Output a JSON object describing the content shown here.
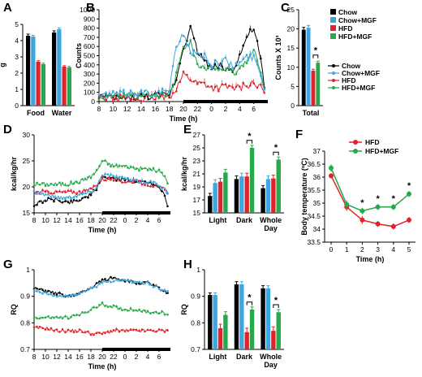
{
  "colors": {
    "chow": "#000000",
    "chow_mgf": "#3da6e0",
    "hfd": "#e0232b",
    "hfd_mgf": "#27a84a"
  },
  "legend": {
    "chow": "Chow",
    "chow_mgf": "Chow+MGF",
    "hfd": "HFD",
    "hfd_mgf": "HFD+MGF"
  },
  "chart_data": [
    {
      "panel": "A",
      "type": "bar",
      "ylabel": "g",
      "ylim": [
        0,
        5
      ],
      "yticks": [
        0,
        1,
        2,
        3,
        4,
        5
      ],
      "categories": [
        "Food",
        "Water"
      ],
      "series": [
        {
          "name": "Chow",
          "values": [
            4.3,
            4.5
          ],
          "err": [
            0.1,
            0.1
          ]
        },
        {
          "name": "Chow+MGF",
          "values": [
            4.25,
            4.7
          ],
          "err": [
            0.08,
            0.08
          ]
        },
        {
          "name": "HFD",
          "values": [
            2.7,
            2.4
          ],
          "err": [
            0.06,
            0.06
          ]
        },
        {
          "name": "HFD+MGF",
          "values": [
            2.55,
            2.35
          ],
          "err": [
            0.06,
            0.06
          ]
        }
      ]
    },
    {
      "panel": "B",
      "type": "line",
      "ylabel": "Counts",
      "xlabel": "Time (h)",
      "ylim": [
        0,
        1000
      ],
      "yticks": [
        0,
        100,
        200,
        300,
        400,
        500,
        600,
        700,
        800,
        900,
        1000
      ],
      "xticks": [
        "8",
        "10",
        "12",
        "14",
        "16",
        "18",
        "20",
        "22",
        "0",
        "2",
        "4",
        "6"
      ],
      "x_start_hour": 8,
      "x_end_hour": 31.5,
      "dark_start_hour": 20,
      "dark_end_hour": 32,
      "series": [
        {
          "name": "Chow",
          "x_hour": [
            8,
            10,
            12,
            14,
            16,
            18,
            19,
            20,
            21,
            22,
            23,
            24,
            25,
            26,
            27,
            28,
            29,
            30,
            31,
            31.5
          ],
          "values": [
            60,
            40,
            40,
            50,
            60,
            70,
            250,
            600,
            800,
            550,
            450,
            350,
            400,
            350,
            350,
            500,
            700,
            800,
            450,
            150
          ]
        },
        {
          "name": "Chow+MGF",
          "x_hour": [
            8,
            10,
            12,
            14,
            16,
            18,
            19,
            20,
            21,
            22,
            23,
            24,
            25,
            26,
            27,
            28,
            29,
            30,
            31,
            31.5
          ],
          "values": [
            60,
            80,
            90,
            100,
            90,
            120,
            600,
            750,
            550,
            500,
            500,
            400,
            420,
            450,
            380,
            420,
            480,
            480,
            300,
            150
          ]
        },
        {
          "name": "HFD",
          "x_hour": [
            8,
            10,
            12,
            14,
            16,
            18,
            19,
            20,
            21,
            22,
            23,
            24,
            25,
            26,
            27,
            28,
            29,
            30,
            31,
            31.5
          ],
          "values": [
            40,
            40,
            30,
            30,
            40,
            50,
            150,
            300,
            250,
            200,
            200,
            150,
            150,
            160,
            150,
            150,
            180,
            200,
            150,
            100
          ]
        },
        {
          "name": "HFD+MGF",
          "x_hour": [
            8,
            10,
            12,
            14,
            16,
            18,
            19,
            20,
            21,
            22,
            23,
            24,
            25,
            26,
            27,
            28,
            29,
            30,
            31,
            31.5
          ],
          "values": [
            50,
            60,
            60,
            60,
            60,
            80,
            300,
            600,
            650,
            400,
            350,
            350,
            380,
            350,
            300,
            350,
            450,
            550,
            350,
            150
          ]
        }
      ]
    },
    {
      "panel": "C",
      "type": "bar",
      "ylabel": "Counts X 10³",
      "ylim": [
        0,
        25
      ],
      "yticks": [
        0,
        5,
        10,
        15,
        20,
        25
      ],
      "categories": [
        "Total"
      ],
      "series": [
        {
          "name": "Chow",
          "values": [
            19.8
          ],
          "err": [
            0.6
          ]
        },
        {
          "name": "Chow+MGF",
          "values": [
            20.3
          ],
          "err": [
            0.6
          ]
        },
        {
          "name": "HFD",
          "values": [
            9.1
          ],
          "err": [
            0.4
          ]
        },
        {
          "name": "HFD+MGF",
          "values": [
            11.2
          ],
          "err": [
            0.4
          ]
        }
      ],
      "annotations": [
        "*"
      ]
    },
    {
      "panel": "D",
      "type": "line",
      "ylabel": "kcal/kg/hr",
      "xlabel": "Time (h)",
      "ylim": [
        15,
        30
      ],
      "yticks": [
        15,
        20,
        25,
        30
      ],
      "xticks": [
        "8",
        "10",
        "12",
        "14",
        "16",
        "18",
        "20",
        "22",
        "0",
        "2",
        "4",
        "6"
      ],
      "x_start_hour": 8,
      "x_end_hour": 31.5,
      "dark_start_hour": 20,
      "dark_end_hour": 32,
      "series": [
        {
          "name": "Chow",
          "x_hour": [
            8,
            10,
            12,
            14,
            16,
            18,
            19,
            20,
            22,
            24,
            26,
            28,
            30,
            31,
            31.5
          ],
          "values": [
            16.5,
            17.5,
            17.5,
            17,
            17.5,
            18.5,
            19.5,
            22,
            21.5,
            21.5,
            21,
            21,
            20,
            18.5,
            16.5
          ]
        },
        {
          "name": "Chow+MGF",
          "x_hour": [
            8,
            10,
            12,
            14,
            16,
            18,
            19,
            20,
            22,
            24,
            26,
            28,
            30,
            31,
            31.5
          ],
          "values": [
            19,
            18.5,
            18,
            18,
            18.5,
            19,
            20,
            22.5,
            22,
            21.5,
            21,
            21,
            20.5,
            19.5,
            18.5
          ]
        },
        {
          "name": "HFD",
          "x_hour": [
            8,
            10,
            12,
            14,
            16,
            18,
            19,
            20,
            22,
            24,
            26,
            28,
            30,
            31,
            31.5
          ],
          "values": [
            19,
            19,
            19,
            19,
            19,
            19.5,
            20.5,
            21.5,
            21.5,
            21,
            21,
            20.5,
            20,
            19.5,
            19
          ]
        },
        {
          "name": "HFD+MGF",
          "x_hour": [
            8,
            10,
            12,
            14,
            16,
            18,
            19,
            20,
            22,
            24,
            26,
            28,
            30,
            31,
            31.5
          ],
          "values": [
            20.5,
            20.5,
            20.5,
            20.5,
            21,
            22,
            23,
            25,
            24,
            24,
            23.5,
            23.5,
            23,
            22,
            21
          ]
        }
      ]
    },
    {
      "panel": "E",
      "type": "bar",
      "ylabel": "kcal/kg/hr",
      "ylim": [
        15,
        27
      ],
      "yticks": [
        15,
        17,
        19,
        21,
        23,
        25,
        27
      ],
      "categories": [
        "Light",
        "Dark",
        "Whole\nDay"
      ],
      "category_lines": [
        [
          "Light"
        ],
        [
          "Dark"
        ],
        [
          "Whole",
          "Day"
        ]
      ],
      "series": [
        {
          "name": "Chow",
          "values": [
            17.6,
            20.2,
            18.8
          ],
          "err": [
            0.4,
            0.5,
            0.4
          ]
        },
        {
          "name": "Chow+MGF",
          "values": [
            19.6,
            20.6,
            20.2
          ],
          "err": [
            0.5,
            0.5,
            0.5
          ]
        },
        {
          "name": "HFD",
          "values": [
            19.8,
            20.6,
            20.3
          ],
          "err": [
            0.5,
            0.5,
            0.5
          ]
        },
        {
          "name": "HFD+MGF",
          "values": [
            21.2,
            25.0,
            23.2
          ],
          "err": [
            0.5,
            0.4,
            0.4
          ]
        }
      ],
      "annotations": [
        "*",
        "*"
      ]
    },
    {
      "panel": "F",
      "type": "line",
      "ylabel": "Body temperature (ºC)",
      "xlabel": "Time (h)",
      "ylim": [
        33.5,
        37
      ],
      "yticks": [
        33.5,
        34,
        34.5,
        35,
        35.5,
        36,
        36.5,
        37
      ],
      "x": [
        0,
        1,
        2,
        3,
        4,
        5
      ],
      "series": [
        {
          "name": "HFD",
          "values": [
            36.05,
            34.85,
            34.35,
            34.2,
            34.1,
            34.35
          ],
          "err": [
            0.1,
            0.15,
            0.15,
            0.12,
            0.12,
            0.12
          ]
        },
        {
          "name": "HFD+MGF",
          "values": [
            36.35,
            34.95,
            34.7,
            34.85,
            34.85,
            35.35
          ],
          "err": [
            0.15,
            0.15,
            0.12,
            0.12,
            0.12,
            0.12
          ]
        }
      ],
      "annotations": [
        "*",
        "*",
        "*",
        "*"
      ]
    },
    {
      "panel": "G",
      "type": "line",
      "ylabel": "RQ",
      "xlabel": "Time (h)",
      "ylim": [
        0.7,
        1.0
      ],
      "yticks": [
        0.7,
        0.8,
        0.9,
        1
      ],
      "xticks": [
        "8",
        "10",
        "12",
        "14",
        "16",
        "18",
        "20",
        "22",
        "0",
        "2",
        "4",
        "6"
      ],
      "x_start_hour": 8,
      "x_end_hour": 31.5,
      "dark_start_hour": 20,
      "dark_end_hour": 32,
      "series": [
        {
          "name": "Chow",
          "x_hour": [
            8,
            10,
            12,
            14,
            16,
            18,
            20,
            22,
            24,
            26,
            28,
            30,
            31.5
          ],
          "values": [
            0.93,
            0.92,
            0.91,
            0.9,
            0.91,
            0.93,
            0.96,
            0.97,
            0.96,
            0.95,
            0.95,
            0.93,
            0.91
          ]
        },
        {
          "name": "Chow+MGF",
          "x_hour": [
            8,
            10,
            12,
            14,
            16,
            18,
            20,
            22,
            24,
            26,
            28,
            30,
            31.5
          ],
          "values": [
            0.92,
            0.91,
            0.9,
            0.9,
            0.91,
            0.93,
            0.95,
            0.96,
            0.96,
            0.95,
            0.95,
            0.93,
            0.92
          ]
        },
        {
          "name": "HFD",
          "x_hour": [
            8,
            10,
            12,
            14,
            16,
            18,
            20,
            22,
            24,
            26,
            28,
            30,
            31.5
          ],
          "values": [
            0.78,
            0.78,
            0.77,
            0.77,
            0.77,
            0.76,
            0.76,
            0.77,
            0.77,
            0.77,
            0.77,
            0.77,
            0.77
          ]
        },
        {
          "name": "HFD+MGF",
          "x_hour": [
            8,
            10,
            12,
            14,
            16,
            18,
            20,
            22,
            24,
            26,
            28,
            30,
            31.5
          ],
          "values": [
            0.82,
            0.82,
            0.82,
            0.82,
            0.83,
            0.85,
            0.87,
            0.86,
            0.85,
            0.85,
            0.84,
            0.84,
            0.83
          ]
        }
      ]
    },
    {
      "panel": "H",
      "type": "bar",
      "ylabel": "RQ",
      "ylim": [
        0.7,
        1.0
      ],
      "yticks": [
        0.7,
        0.8,
        0.9,
        1
      ],
      "categories": [
        "Light",
        "Dark",
        "Whole\nDay"
      ],
      "category_lines": [
        [
          "Light"
        ],
        [
          "Dark"
        ],
        [
          "Whole",
          "Day"
        ]
      ],
      "series": [
        {
          "name": "Chow",
          "values": [
            0.905,
            0.945,
            0.93
          ],
          "err": [
            0.008,
            0.01,
            0.01
          ]
        },
        {
          "name": "Chow+MGF",
          "values": [
            0.905,
            0.945,
            0.93
          ],
          "err": [
            0.008,
            0.01,
            0.01
          ]
        },
        {
          "name": "HFD",
          "values": [
            0.78,
            0.765,
            0.77
          ],
          "err": [
            0.015,
            0.015,
            0.015
          ]
        },
        {
          "name": "HFD+MGF",
          "values": [
            0.83,
            0.85,
            0.84
          ],
          "err": [
            0.012,
            0.01,
            0.01
          ]
        }
      ],
      "annotations": [
        "*",
        "*"
      ]
    }
  ]
}
